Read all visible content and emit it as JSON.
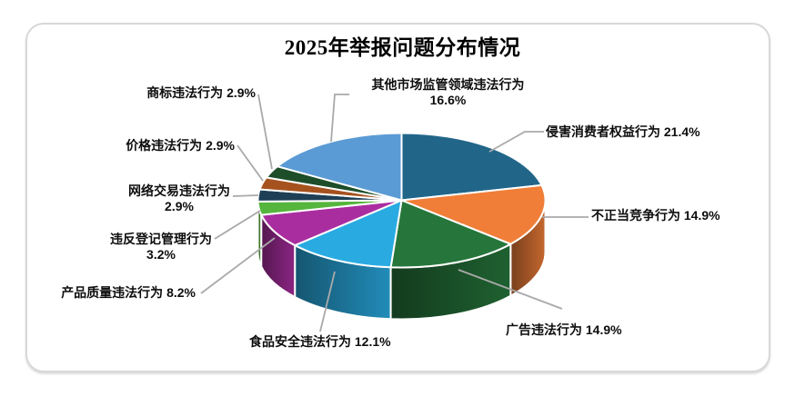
{
  "title": "2025年举报问题分布情况",
  "chart_data": {
    "type": "pie",
    "title": "2025年举报问题分布情况",
    "style": "3d-pie",
    "unit": "%",
    "start_angle_deg": 0,
    "direction": "clockwise",
    "labels_show": "name+percent",
    "leader_line_color": "#A9A9A9",
    "slices": [
      {
        "label": "侵害消费者权益行为",
        "value": 21.4,
        "color": "#216689"
      },
      {
        "label": "不正当竞争行为",
        "value": 14.9,
        "color": "#F07E38"
      },
      {
        "label": "广告违法行为",
        "value": 14.9,
        "color": "#26763B"
      },
      {
        "label": "食品安全违法行为",
        "value": 12.1,
        "color": "#29ABE2"
      },
      {
        "label": "产品质量违法行为",
        "value": 8.2,
        "color": "#AA2DA0"
      },
      {
        "label": "违反登记管理行为",
        "value": 3.2,
        "color": "#55B53C"
      },
      {
        "label": "网络交易违法行为",
        "value": 2.9,
        "color": "#1E3F55"
      },
      {
        "label": "价格违法行为",
        "value": 2.9,
        "color": "#A6521F"
      },
      {
        "label": "商标违法行为",
        "value": 2.9,
        "color": "#1E4D2A"
      },
      {
        "label": "其他市场监管领域违法行为",
        "value": 16.6,
        "color": "#5B9BD5"
      }
    ]
  }
}
